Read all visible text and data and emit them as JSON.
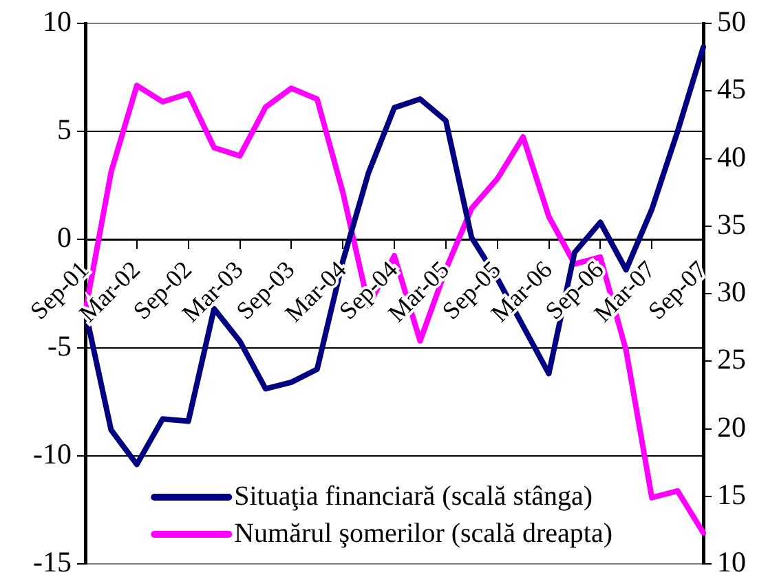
{
  "chart_data": {
    "type": "line",
    "categories": [
      "Sep-01",
      null,
      "Mar-02",
      null,
      "Sep-02",
      null,
      "Mar-03",
      null,
      "Sep-03",
      null,
      "Mar-04",
      null,
      "Sep-04",
      null,
      "Mar-05",
      null,
      "Sep-05",
      null,
      "Mar-06",
      null,
      "Sep-06",
      null,
      "Mar-07",
      null,
      "Sep-07"
    ],
    "series": [
      {
        "name": "Situaţia financiară (scală stânga)",
        "color": "#000080",
        "values": [
          -3.3,
          -8.8,
          -10.4,
          -8.3,
          -8.4,
          -3.2,
          -4.7,
          -6.9,
          -6.6,
          -6.0,
          -1.0,
          3.1,
          6.1,
          6.5,
          5.5,
          0.1,
          -1.8,
          -4.0,
          -6.2,
          -0.6,
          0.8,
          -1.4,
          1.4,
          5.0,
          8.9
        ]
      },
      {
        "name": "Numărul şomerilor (scală dreapta)",
        "color": "#ff00ff",
        "axis": "y2",
        "values": [
          28.7,
          39.0,
          45.4,
          44.2,
          44.8,
          40.8,
          40.2,
          43.8,
          45.2,
          44.4,
          37.5,
          29.1,
          32.8,
          26.5,
          31.8,
          36.3,
          38.5,
          41.6,
          35.7,
          32.2,
          32.7,
          25.8,
          14.9,
          15.4,
          12.3
        ]
      }
    ],
    "ylim": [
      -15,
      10
    ],
    "yticks": [
      -15,
      -10,
      -5,
      0,
      5,
      10
    ],
    "y2lim": [
      10,
      50
    ],
    "y2ticks": [
      10,
      15,
      20,
      25,
      30,
      35,
      40,
      45,
      50
    ],
    "grid": "y",
    "legend": "bottom right",
    "marker": "none"
  }
}
